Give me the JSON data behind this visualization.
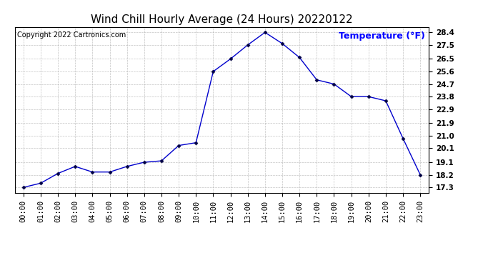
{
  "title": "Wind Chill Hourly Average (24 Hours) 20220122",
  "copyright_text": "Copyright 2022 Cartronics.com",
  "ylabel": "Temperature (°F)",
  "hours": [
    "00:00",
    "01:00",
    "02:00",
    "03:00",
    "04:00",
    "05:00",
    "06:00",
    "07:00",
    "08:00",
    "09:00",
    "10:00",
    "11:00",
    "12:00",
    "13:00",
    "14:00",
    "15:00",
    "16:00",
    "17:00",
    "18:00",
    "19:00",
    "20:00",
    "21:00",
    "22:00",
    "23:00"
  ],
  "values": [
    17.3,
    17.6,
    18.3,
    18.8,
    18.4,
    18.4,
    18.8,
    19.1,
    19.2,
    20.3,
    20.5,
    25.6,
    26.5,
    27.5,
    28.4,
    27.6,
    26.6,
    25.0,
    24.7,
    23.8,
    23.8,
    23.5,
    20.8,
    18.2
  ],
  "yticks": [
    17.3,
    18.2,
    19.1,
    20.1,
    21.0,
    21.9,
    22.9,
    23.8,
    24.7,
    25.6,
    26.5,
    27.5,
    28.4
  ],
  "ylim": [
    16.9,
    28.8
  ],
  "xlim": [
    -0.5,
    23.5
  ],
  "line_color": "#0000cc",
  "marker_color": "#000044",
  "title_color": "#000000",
  "ylabel_color": "#0000ff",
  "copyright_color": "#000000",
  "bg_color": "#ffffff",
  "grid_color": "#aaaaaa",
  "title_fontsize": 11,
  "ylabel_fontsize": 9,
  "copyright_fontsize": 7,
  "tick_fontsize": 7.5
}
